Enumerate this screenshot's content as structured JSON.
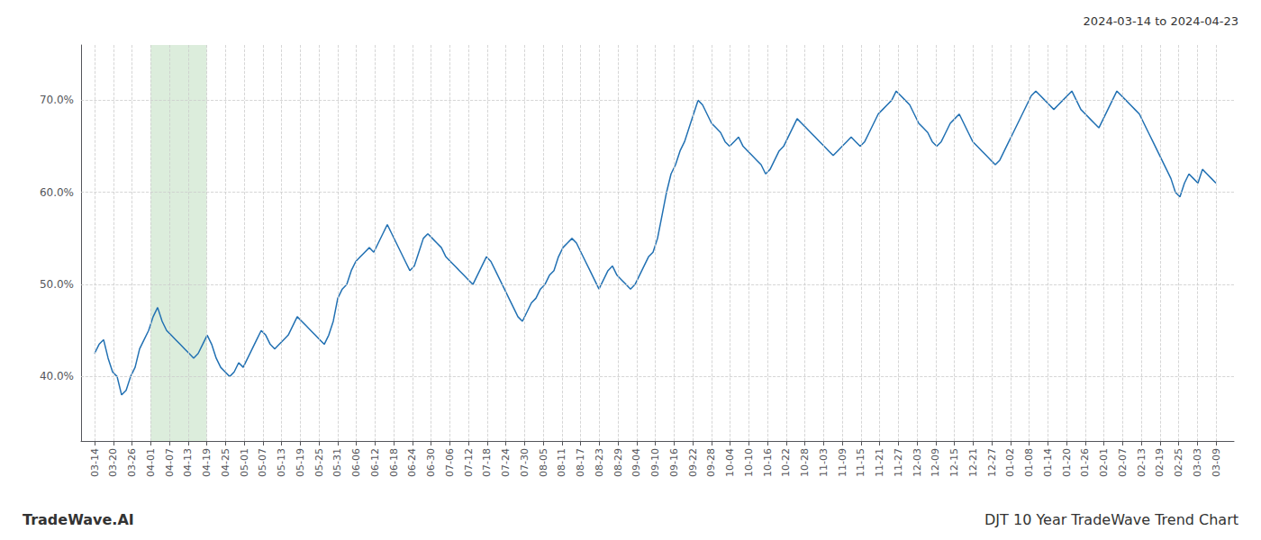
{
  "chart_data": {
    "type": "line",
    "title": "DJT 10 Year TradeWave Trend Chart",
    "subtitle": "2024-03-14 to 2024-04-23",
    "annotations": [
      "TradeWave.AI"
    ],
    "color": "#2271b3",
    "grid": true,
    "xlim": [
      -3,
      253
    ],
    "xticks": [
      {
        "value": 0,
        "label": "03-14"
      },
      {
        "value": 4.15,
        "label": "03-20"
      },
      {
        "value": 8.3,
        "label": "03-26"
      },
      {
        "value": 12.45,
        "label": "04-01"
      },
      {
        "value": 16.6,
        "label": "04-07"
      },
      {
        "value": 20.75,
        "label": "04-13"
      },
      {
        "value": 24.9,
        "label": "04-19"
      },
      {
        "value": 29.05,
        "label": "04-25"
      },
      {
        "value": 33.2,
        "label": "05-01"
      },
      {
        "value": 37.35,
        "label": "05-07"
      },
      {
        "value": 41.5,
        "label": "05-13"
      },
      {
        "value": 45.65,
        "label": "05-19"
      },
      {
        "value": 49.8,
        "label": "05-25"
      },
      {
        "value": 53.95,
        "label": "05-31"
      },
      {
        "value": 58.1,
        "label": "06-06"
      },
      {
        "value": 62.25,
        "label": "06-12"
      },
      {
        "value": 66.4,
        "label": "06-18"
      },
      {
        "value": 70.55,
        "label": "06-24"
      },
      {
        "value": 74.7,
        "label": "06-30"
      },
      {
        "value": 78.85,
        "label": "07-06"
      },
      {
        "value": 83,
        "label": "07-12"
      },
      {
        "value": 87.15,
        "label": "07-18"
      },
      {
        "value": 91.3,
        "label": "07-24"
      },
      {
        "value": 95.45,
        "label": "07-30"
      },
      {
        "value": 99.6,
        "label": "08-05"
      },
      {
        "value": 103.75,
        "label": "08-11"
      },
      {
        "value": 107.9,
        "label": "08-17"
      },
      {
        "value": 112.05,
        "label": "08-23"
      },
      {
        "value": 116.2,
        "label": "08-29"
      },
      {
        "value": 120.35,
        "label": "09-04"
      },
      {
        "value": 124.5,
        "label": "09-10"
      },
      {
        "value": 128.65,
        "label": "09-16"
      },
      {
        "value": 132.8,
        "label": "09-22"
      },
      {
        "value": 136.95,
        "label": "09-28"
      },
      {
        "value": 141.1,
        "label": "10-04"
      },
      {
        "value": 145.25,
        "label": "10-10"
      },
      {
        "value": 149.4,
        "label": "10-16"
      },
      {
        "value": 153.55,
        "label": "10-22"
      },
      {
        "value": 157.7,
        "label": "10-28"
      },
      {
        "value": 161.85,
        "label": "11-03"
      },
      {
        "value": 166,
        "label": "11-09"
      },
      {
        "value": 170.15,
        "label": "11-15"
      },
      {
        "value": 174.3,
        "label": "11-21"
      },
      {
        "value": 178.45,
        "label": "11-27"
      },
      {
        "value": 182.6,
        "label": "12-03"
      },
      {
        "value": 186.75,
        "label": "12-09"
      },
      {
        "value": 190.9,
        "label": "12-15"
      },
      {
        "value": 195.05,
        "label": "12-21"
      },
      {
        "value": 199.2,
        "label": "12-27"
      },
      {
        "value": 203.35,
        "label": "01-02"
      },
      {
        "value": 207.5,
        "label": "01-08"
      },
      {
        "value": 211.65,
        "label": "01-14"
      },
      {
        "value": 215.8,
        "label": "01-20"
      },
      {
        "value": 219.95,
        "label": "01-26"
      },
      {
        "value": 224.1,
        "label": "02-01"
      },
      {
        "value": 228.25,
        "label": "02-07"
      },
      {
        "value": 232.4,
        "label": "02-13"
      },
      {
        "value": 236.55,
        "label": "02-19"
      },
      {
        "value": 240.7,
        "label": "02-25"
      },
      {
        "value": 244.85,
        "label": "03-03"
      },
      {
        "value": 249,
        "label": "03-09"
      }
    ],
    "highlight": {
      "x": [
        12.45,
        24.9
      ],
      "color": "#d6ead6"
    },
    "ylim": [
      33,
      76
    ],
    "yticks": [
      {
        "value": 40.0,
        "label": "40.0%"
      },
      {
        "value": 50.0,
        "label": "50.0%"
      },
      {
        "value": 60.0,
        "label": "60.0%"
      },
      {
        "value": 70.0,
        "label": "70.0%"
      }
    ],
    "values": [
      42.5,
      43.5,
      44.0,
      42.0,
      40.5,
      40.0,
      38.0,
      38.5,
      40.0,
      41.0,
      43.0,
      44.0,
      45.0,
      46.5,
      47.5,
      46.0,
      45.0,
      44.5,
      44.0,
      43.5,
      43.0,
      42.5,
      42.0,
      42.5,
      43.5,
      44.5,
      43.5,
      42.0,
      41.0,
      40.5,
      40.0,
      40.5,
      41.5,
      41.0,
      42.0,
      43.0,
      44.0,
      45.0,
      44.5,
      43.5,
      43.0,
      43.5,
      44.0,
      44.5,
      45.5,
      46.5,
      46.0,
      45.5,
      45.0,
      44.5,
      44.0,
      43.5,
      44.5,
      46.0,
      48.5,
      49.5,
      50.0,
      51.5,
      52.5,
      53.0,
      53.5,
      54.0,
      53.5,
      54.5,
      55.5,
      56.5,
      55.5,
      54.5,
      53.5,
      52.5,
      51.5,
      52.0,
      53.5,
      55.0,
      55.5,
      55.0,
      54.5,
      54.0,
      53.0,
      52.5,
      52.0,
      51.5,
      51.0,
      50.5,
      50.0,
      51.0,
      52.0,
      53.0,
      52.5,
      51.5,
      50.5,
      49.5,
      48.5,
      47.5,
      46.5,
      46.0,
      47.0,
      48.0,
      48.5,
      49.5,
      50.0,
      51.0,
      51.5,
      53.0,
      54.0,
      54.5,
      55.0,
      54.5,
      53.5,
      52.5,
      51.5,
      50.5,
      49.5,
      50.5,
      51.5,
      52.0,
      51.0,
      50.5,
      50.0,
      49.5,
      50.0,
      51.0,
      52.0,
      53.0,
      53.5,
      55.0,
      57.5,
      60.0,
      62.0,
      63.0,
      64.5,
      65.5,
      67.0,
      68.5,
      70.0,
      69.5,
      68.5,
      67.5,
      67.0,
      66.5,
      65.5,
      65.0,
      65.5,
      66.0,
      65.0,
      64.5,
      64.0,
      63.5,
      63.0,
      62.0,
      62.5,
      63.5,
      64.5,
      65.0,
      66.0,
      67.0,
      68.0,
      67.5,
      67.0,
      66.5,
      66.0,
      65.5,
      65.0,
      64.5,
      64.0,
      64.5,
      65.0,
      65.5,
      66.0,
      65.5,
      65.0,
      65.5,
      66.5,
      67.5,
      68.5,
      69.0,
      69.5,
      70.0,
      71.0,
      70.5,
      70.0,
      69.5,
      68.5,
      67.5,
      67.0,
      66.5,
      65.5,
      65.0,
      65.5,
      66.5,
      67.5,
      68.0,
      68.5,
      67.5,
      66.5,
      65.5,
      65.0,
      64.5,
      64.0,
      63.5,
      63.0,
      63.5,
      64.5,
      65.5,
      66.5,
      67.5,
      68.5,
      69.5,
      70.5,
      71.0,
      70.5,
      70.0,
      69.5,
      69.0,
      69.5,
      70.0,
      70.5,
      71.0,
      70.0,
      69.0,
      68.5,
      68.0,
      67.5,
      67.0,
      68.0,
      69.0,
      70.0,
      71.0,
      70.5,
      70.0,
      69.5,
      69.0,
      68.5,
      67.5,
      66.5,
      65.5,
      64.5,
      63.5,
      62.5,
      61.5,
      60.0,
      59.5,
      61.0,
      62.0,
      61.5,
      61.0,
      62.5,
      62.0,
      61.5,
      61.0
    ]
  }
}
